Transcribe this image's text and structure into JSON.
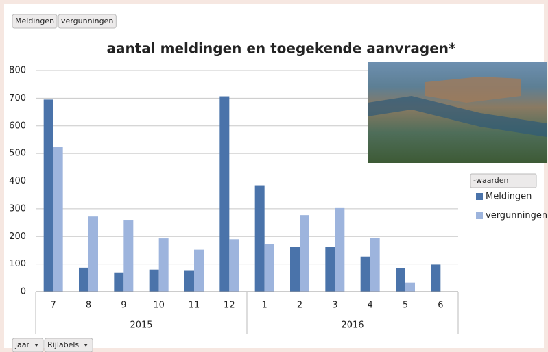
{
  "chart_data": {
    "type": "bar",
    "title": "aantal meldingen en toegekende aanvragen*",
    "groups": [
      {
        "label": "2015",
        "categories": [
          "7",
          "8",
          "9",
          "10",
          "11",
          "12"
        ]
      },
      {
        "label": "2016",
        "categories": [
          "1",
          "2",
          "3",
          "4",
          "5",
          "6"
        ]
      }
    ],
    "series": [
      {
        "name": "Meldingen",
        "color": "#4a73aa",
        "values": [
          695,
          87,
          70,
          80,
          78,
          707,
          385,
          162,
          163,
          127,
          85,
          98
        ]
      },
      {
        "name": "vergunningen",
        "color": "#9db4dd",
        "values": [
          523,
          272,
          260,
          193,
          152,
          190,
          173,
          277,
          305,
          195,
          33,
          null
        ]
      }
    ],
    "ylim": [
      0,
      800
    ],
    "yticks": [
      0,
      100,
      200,
      300,
      400,
      500,
      600,
      700,
      800
    ],
    "grid": true,
    "legend_title": "-waarden",
    "legend_position": "right"
  },
  "field_buttons": {
    "top": [
      "Meldingen",
      "vergunningen"
    ],
    "bottom": [
      "jaar",
      "Rijlabels"
    ]
  }
}
